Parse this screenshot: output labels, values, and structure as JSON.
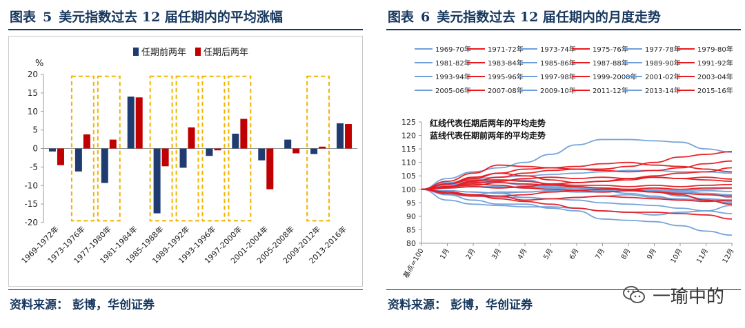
{
  "left": {
    "title_label": "图表",
    "title_number": "5",
    "title_text": "美元指数过去 12 届任期内的平均涨幅",
    "source_label": "资料来源：",
    "source_text": "彭博，华创证券"
  },
  "right": {
    "title_label": "图表",
    "title_number": "6",
    "title_text": "美元指数过去 12 届任期内的月度走势",
    "source_label": "资料来源：",
    "source_text": "彭博，华创证券",
    "watermark": "一瑜中的"
  },
  "colors": {
    "navy": "#17375e",
    "bar_blue": "#1f3b70",
    "bar_red": "#c00000",
    "line_blue": "#6f9fd8",
    "line_red": "#e8191f",
    "highlight_box": "#f0b400"
  },
  "chart_data": [
    {
      "type": "bar",
      "ylabel": "%",
      "ylim": [
        -20,
        20
      ],
      "yticks": [
        -20,
        -15,
        -10,
        -5,
        0,
        5,
        10,
        15,
        20
      ],
      "legend_position": "top",
      "categories": [
        "1969-1972年",
        "1973-1976年",
        "1977-1980年",
        "1981-1984年",
        "1985-1988年",
        "1989-1992年",
        "1993-1996年",
        "1997-2000年",
        "2001-2004年",
        "2005-2008年",
        "2009-2012年",
        "2013-2016年"
      ],
      "series": [
        {
          "name": "任期前两年",
          "color": "#1f3b70",
          "values": [
            -0.8,
            -6.2,
            -9.3,
            14.0,
            -17.5,
            -5.2,
            -2.0,
            4.0,
            -3.2,
            2.4,
            -1.5,
            6.8
          ]
        },
        {
          "name": "任期后两年",
          "color": "#c00000",
          "values": [
            -4.5,
            3.8,
            2.4,
            13.8,
            -4.8,
            5.7,
            -0.5,
            8.0,
            -11.0,
            -1.3,
            0.5,
            6.6
          ]
        }
      ],
      "highlighted_categories": [
        "1973-1976年",
        "1977-1980年",
        "1985-1988年",
        "1989-1992年",
        "1993-1996年",
        "1997-2000年",
        "2009-2012年"
      ]
    },
    {
      "type": "line",
      "ylim": [
        80,
        125
      ],
      "yticks": [
        80,
        85,
        90,
        95,
        100,
        105,
        110,
        115,
        120,
        125
      ],
      "categories": [
        "基点=100",
        "1月",
        "2月",
        "3月",
        "4月",
        "5月",
        "6月",
        "7月",
        "8月",
        "9月",
        "10月",
        "11月",
        "12月"
      ],
      "annotations": [
        "红线代表任期后两年的平均走势",
        "蓝线代表任期前两年的平均走势"
      ],
      "legend_position": "top",
      "series": [
        {
          "name": "1969-70年",
          "color": "blue",
          "values": [
            100,
            100.5,
            101,
            100.5,
            101,
            100.5,
            100,
            99.5,
            100,
            99.5,
            99,
            99.5,
            99.2
          ]
        },
        {
          "name": "1971-72年",
          "color": "red",
          "values": [
            100,
            99,
            98,
            96.5,
            95.5,
            94.5,
            93,
            92,
            91.5,
            91.5,
            91,
            90.5,
            89
          ]
        },
        {
          "name": "1973-74年",
          "color": "blue",
          "values": [
            100,
            96,
            94.5,
            94,
            93.5,
            93.5,
            93,
            92,
            91.5,
            90.5,
            91.5,
            92,
            94
          ]
        },
        {
          "name": "1975-76年",
          "color": "red",
          "values": [
            100,
            101,
            102.5,
            103,
            104,
            104.5,
            104,
            104.5,
            104,
            104.5,
            104,
            104.5,
            103.8
          ]
        },
        {
          "name": "1977-78年",
          "color": "blue",
          "values": [
            100,
            99.5,
            99,
            98.5,
            97,
            96.5,
            96,
            95,
            94.5,
            94,
            93,
            92,
            91
          ]
        },
        {
          "name": "1979-80年",
          "color": "red",
          "values": [
            100,
            100.5,
            101,
            100.5,
            101,
            102,
            101.5,
            101.5,
            101,
            101.5,
            101,
            101.5,
            101.8
          ]
        },
        {
          "name": "1981-82年",
          "color": "blue",
          "values": [
            100,
            104,
            106.5,
            108,
            110,
            113,
            116.5,
            118.5,
            118.5,
            118,
            117.5,
            115,
            113.8
          ]
        },
        {
          "name": "1983-84年",
          "color": "red",
          "values": [
            100,
            101,
            103,
            104.5,
            106,
            107,
            107.5,
            107.5,
            108.5,
            110,
            112,
            113,
            114
          ]
        },
        {
          "name": "1985-86年",
          "color": "blue",
          "values": [
            100,
            98,
            96,
            94.5,
            94.5,
            93,
            92,
            89,
            88.5,
            88,
            86.5,
            84.5,
            83
          ]
        },
        {
          "name": "1987-88年",
          "color": "red",
          "values": [
            100,
            99,
            98,
            97.5,
            96,
            96.5,
            97,
            97.5,
            97,
            96.5,
            96,
            95.5,
            96
          ]
        },
        {
          "name": "1989-90年",
          "color": "blue",
          "values": [
            100,
            101.5,
            103,
            103.5,
            103.5,
            102,
            101,
            99.5,
            98.5,
            97.5,
            96,
            96.5,
            95.5
          ]
        },
        {
          "name": "1991-92年",
          "color": "red",
          "values": [
            100,
            102,
            103.5,
            103.5,
            103,
            102,
            102.5,
            103,
            103.5,
            104.5,
            104,
            103.5,
            103
          ]
        },
        {
          "name": "1993-94年",
          "color": "blue",
          "values": [
            100,
            101.5,
            102.5,
            102.5,
            101.5,
            101,
            100.5,
            100,
            99.5,
            99,
            97.5,
            96.5,
            96
          ]
        },
        {
          "name": "1995-96年",
          "color": "red",
          "values": [
            100,
            98.5,
            97.5,
            97.5,
            98,
            99,
            99.5,
            100,
            100,
            100.5,
            100,
            100.5,
            100.5
          ]
        },
        {
          "name": "1997-98年",
          "color": "blue",
          "values": [
            100,
            102.5,
            104,
            104.5,
            105,
            105.5,
            106,
            106.5,
            107,
            107,
            106.5,
            106.5,
            106
          ]
        },
        {
          "name": "1999-2000年",
          "color": "red",
          "values": [
            100,
            101,
            102,
            101.5,
            100.5,
            100,
            99.5,
            99,
            99.5,
            99,
            98.5,
            98,
            97.5
          ]
        },
        {
          "name": "2001-02年",
          "color": "blue",
          "values": [
            100,
            100.5,
            101,
            101,
            100.5,
            100.5,
            101,
            100.5,
            100,
            99.5,
            99,
            98.5,
            98
          ]
        },
        {
          "name": "2003-04年",
          "color": "red",
          "values": [
            100,
            102,
            104,
            106,
            107.5,
            108,
            107.5,
            107,
            106.5,
            107,
            108,
            109.5,
            110.5
          ]
        },
        {
          "name": "2005-06年",
          "color": "blue",
          "values": [
            100,
            99.5,
            99,
            98.5,
            99,
            99.5,
            100,
            100.5,
            100,
            99.5,
            99,
            98.5,
            97
          ]
        },
        {
          "name": "2007-08年",
          "color": "red",
          "values": [
            100,
            101,
            101.5,
            102.5,
            102,
            101.5,
            101,
            100.5,
            100,
            99,
            98,
            96,
            94.5
          ]
        },
        {
          "name": "2009-10年",
          "color": "blue",
          "values": [
            100,
            98,
            97.5,
            97,
            97,
            96.5,
            97,
            97.5,
            98,
            97,
            96.5,
            96,
            95
          ]
        },
        {
          "name": "2011-12年",
          "color": "red",
          "values": [
            100,
            103,
            106,
            109,
            108.5,
            108,
            108.5,
            109.5,
            110,
            109,
            108.5,
            107.5,
            106.5
          ]
        },
        {
          "name": "2013-14年",
          "color": "blue",
          "values": [
            100,
            98.5,
            98,
            99,
            99,
            99.5,
            99,
            99,
            99.5,
            100,
            99.5,
            100,
            100.5
          ]
        },
        {
          "name": "2015-16年",
          "color": "red",
          "values": [
            100,
            102,
            104.5,
            106,
            105,
            103.5,
            102.5,
            103,
            104,
            105,
            106,
            106.5,
            108
          ]
        }
      ]
    }
  ]
}
